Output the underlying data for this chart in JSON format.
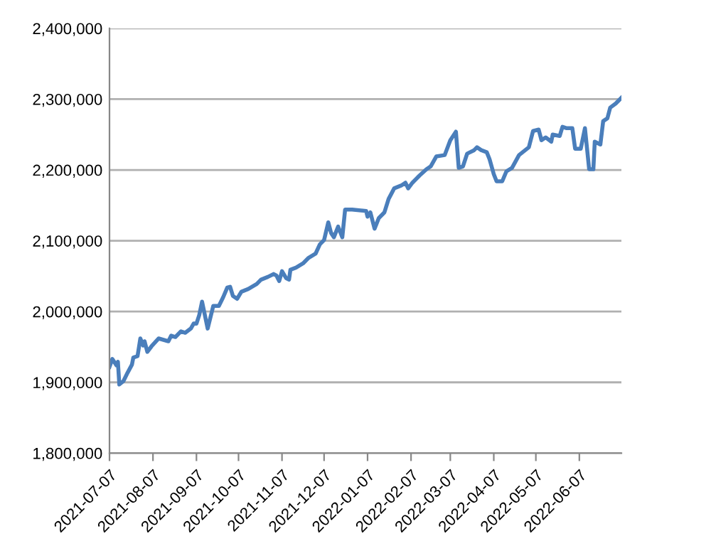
{
  "chart_data": {
    "type": "line",
    "x": [
      "2021-07-07",
      "2021-07-09",
      "2021-07-12",
      "2021-07-13",
      "2021-07-14",
      "2021-07-17",
      "2021-07-20",
      "2021-07-23",
      "2021-07-24",
      "2021-07-27",
      "2021-07-29",
      "2021-07-31",
      "2021-08-01",
      "2021-08-03",
      "2021-08-06",
      "2021-08-11",
      "2021-08-18",
      "2021-08-20",
      "2021-08-23",
      "2021-08-27",
      "2021-08-30",
      "2021-09-03",
      "2021-09-05",
      "2021-09-07",
      "2021-09-09",
      "2021-09-11",
      "2021-09-15",
      "2021-09-19",
      "2021-09-23",
      "2021-09-26",
      "2021-09-29",
      "2021-10-01",
      "2021-10-03",
      "2021-10-06",
      "2021-10-09",
      "2021-10-14",
      "2021-10-20",
      "2021-10-23",
      "2021-10-28",
      "2021-11-01",
      "2021-11-03",
      "2021-11-05",
      "2021-11-07",
      "2021-11-10",
      "2021-11-12",
      "2021-11-13",
      "2021-11-17",
      "2021-11-22",
      "2021-11-26",
      "2021-12-01",
      "2021-12-04",
      "2021-12-07",
      "2021-12-10",
      "2021-12-12",
      "2021-12-14",
      "2021-12-17",
      "2021-12-20",
      "2021-12-22",
      "2021-12-27",
      "2022-01-06",
      "2022-01-07",
      "2022-01-09",
      "2022-01-12",
      "2022-01-15",
      "2022-01-19",
      "2022-01-22",
      "2022-01-26",
      "2022-01-31",
      "2022-02-03",
      "2022-02-05",
      "2022-02-08",
      "2022-02-13",
      "2022-02-18",
      "2022-02-21",
      "2022-02-25",
      "2022-03-03",
      "2022-03-07",
      "2022-03-11",
      "2022-03-13",
      "2022-03-16",
      "2022-03-19",
      "2022-03-24",
      "2022-03-26",
      "2022-03-29",
      "2022-04-02",
      "2022-04-04",
      "2022-04-07",
      "2022-04-09",
      "2022-04-13",
      "2022-04-16",
      "2022-04-20",
      "2022-04-25",
      "2022-05-02",
      "2022-05-05",
      "2022-05-09",
      "2022-05-11",
      "2022-05-14",
      "2022-05-18",
      "2022-05-19",
      "2022-05-24",
      "2022-05-26",
      "2022-05-29",
      "2022-06-02",
      "2022-06-04",
      "2022-06-08",
      "2022-06-11",
      "2022-06-14",
      "2022-06-17",
      "2022-06-18",
      "2022-06-22",
      "2022-06-24",
      "2022-06-27",
      "2022-06-29",
      "2022-07-03",
      "2022-07-07"
    ],
    "series": [
      {
        "color": "#4a7ebb",
        "values": [
          1922000,
          1933000,
          1924000,
          1929000,
          1897000,
          1902000,
          1914000,
          1925000,
          1935000,
          1937000,
          1962000,
          1952000,
          1958000,
          1943000,
          1951000,
          1962000,
          1958000,
          1966000,
          1964000,
          1972000,
          1970000,
          1976000,
          1983000,
          1983000,
          1995000,
          2014000,
          1976000,
          2008000,
          2008000,
          2020000,
          2034000,
          2035000,
          2022000,
          2018000,
          2028000,
          2032000,
          2039000,
          2045000,
          2049000,
          2053000,
          2051000,
          2043000,
          2057000,
          2047000,
          2045000,
          2059000,
          2062000,
          2068000,
          2076000,
          2082000,
          2095000,
          2101000,
          2126000,
          2111000,
          2105000,
          2120000,
          2105000,
          2144000,
          2144000,
          2142000,
          2134000,
          2140000,
          2117000,
          2132000,
          2140000,
          2159000,
          2174000,
          2178000,
          2182000,
          2174000,
          2182000,
          2192000,
          2201000,
          2205000,
          2219000,
          2221000,
          2242000,
          2254000,
          2203000,
          2205000,
          2223000,
          2228000,
          2232000,
          2228000,
          2225000,
          2215000,
          2194000,
          2184000,
          2184000,
          2198000,
          2203000,
          2221000,
          2232000,
          2255000,
          2257000,
          2242000,
          2246000,
          2240000,
          2250000,
          2248000,
          2261000,
          2259000,
          2259000,
          2230000,
          2230000,
          2259000,
          2201000,
          2201000,
          2240000,
          2236000,
          2269000,
          2273000,
          2288000,
          2294000,
          2302000
        ]
      }
    ],
    "xlim": [
      "2021-07-07",
      "2022-07-07"
    ],
    "xticks": [
      "2021-07-07",
      "2021-08-07",
      "2021-09-07",
      "2021-10-07",
      "2021-11-07",
      "2021-12-07",
      "2022-01-07",
      "2022-02-07",
      "2022-03-07",
      "2022-04-07",
      "2022-05-07",
      "2022-06-07"
    ],
    "ylim": [
      1800000,
      2400000
    ],
    "yticks": [
      {
        "value": 1800000,
        "label": "1,800,000"
      },
      {
        "value": 1900000,
        "label": "1,900,000"
      },
      {
        "value": 2000000,
        "label": "2,000,000"
      },
      {
        "value": 2100000,
        "label": "2,100,000"
      },
      {
        "value": 2200000,
        "label": "2,200,000"
      },
      {
        "value": 2300000,
        "label": "2,300,000"
      },
      {
        "value": 2400000,
        "label": "2,400,000"
      }
    ],
    "grid": "y",
    "line_style": "solid",
    "marker": "none"
  }
}
